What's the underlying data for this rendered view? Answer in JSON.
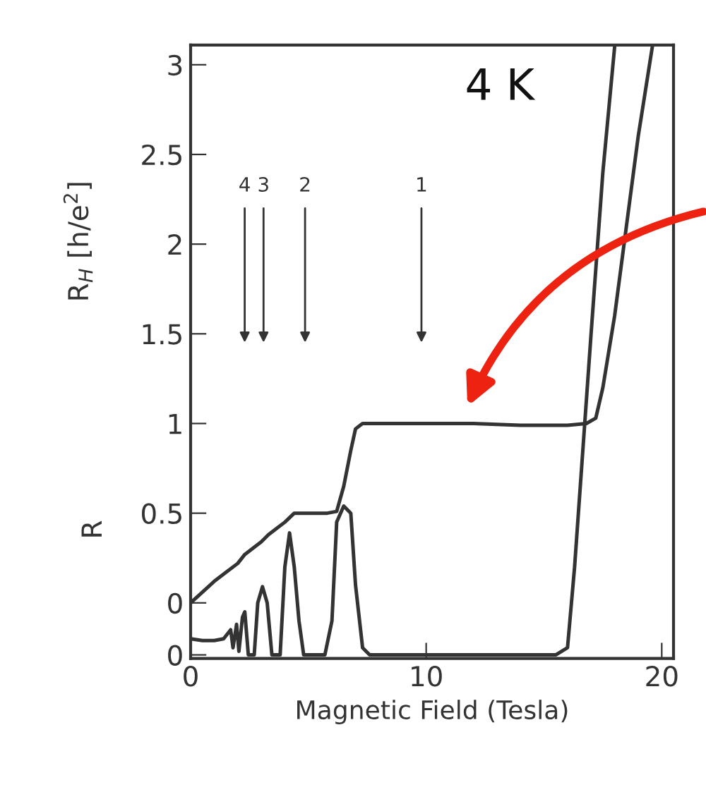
{
  "chart_data": {
    "type": "line",
    "xlabel": "Magnetic Field (Tesla)",
    "ylabel": "R$_{H}$ [h/e$^{2}$]",
    "xlim": [
      0,
      20.5
    ],
    "xticks": [
      0,
      10,
      20
    ],
    "ylim": [
      -0.31,
      3.11
    ],
    "yticks": [
      {
        "value": -0.29,
        "label": "0"
      },
      0,
      0.5,
      1,
      1.5,
      2,
      2.5,
      3
    ],
    "grid": false,
    "legend": false,
    "marker": "none",
    "line_style": "solid",
    "series": [
      {
        "color": "#333333",
        "x": [
          0,
          0.5,
          1,
          1.5,
          2,
          2.3,
          2.6,
          3.0,
          3.3,
          3.7,
          4.0,
          4.4,
          5.0,
          5.8,
          6.2,
          6.5,
          6.8,
          7.0,
          7.3,
          8,
          10,
          12,
          14,
          16,
          16.8,
          17.2,
          17.5,
          18,
          18.5,
          19,
          19.6
        ],
        "values": [
          0,
          0.06,
          0.12,
          0.17,
          0.22,
          0.27,
          0.3,
          0.34,
          0.38,
          0.42,
          0.45,
          0.5,
          0.5,
          0.5,
          0.51,
          0.65,
          0.85,
          0.97,
          1.0,
          1.0,
          1.0,
          1.0,
          0.99,
          0.99,
          1.0,
          1.03,
          1.2,
          1.6,
          2.1,
          2.6,
          3.1
        ]
      },
      {
        "color": "#333333",
        "x": [
          0,
          0.5,
          1.0,
          1.4,
          1.7,
          1.8,
          1.95,
          2.05,
          2.2,
          2.3,
          2.45,
          2.7,
          2.85,
          3.05,
          3.25,
          3.45,
          3.8,
          4.0,
          4.2,
          4.4,
          4.6,
          4.8,
          5.7,
          6.0,
          6.2,
          6.5,
          6.8,
          7.0,
          7.3,
          7.6,
          15.5,
          16.0,
          16.3,
          17,
          17.5,
          18
        ],
        "values": [
          -0.2,
          -0.21,
          -0.21,
          -0.2,
          -0.15,
          -0.25,
          -0.12,
          -0.27,
          -0.08,
          -0.05,
          -0.29,
          -0.29,
          0.0,
          0.09,
          0.0,
          -0.29,
          -0.29,
          0.2,
          0.39,
          0.2,
          -0.1,
          -0.29,
          -0.29,
          -0.1,
          0.45,
          0.54,
          0.5,
          0.1,
          -0.25,
          -0.29,
          -0.29,
          -0.25,
          0.2,
          1.5,
          2.4,
          3.1
        ]
      }
    ],
    "annotations": [
      "4 K",
      "R",
      "4",
      "3",
      "2",
      "1"
    ]
  }
}
